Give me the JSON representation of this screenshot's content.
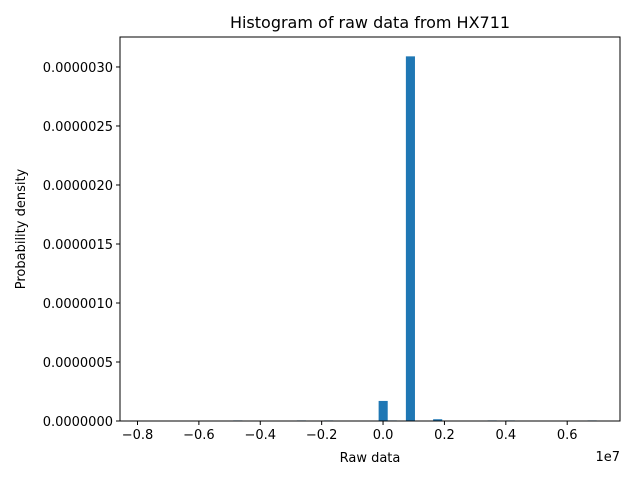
{
  "chart_data": {
    "type": "histogram",
    "title": "Histogram of raw data from HX711",
    "xlabel": "Raw data",
    "ylabel": "Probability density",
    "x_offset_label": "1e7",
    "color": "#1f77b4",
    "bins": [
      -0.784,
      -0.7544,
      -0.7248,
      -0.6952,
      -0.6656,
      -0.636,
      -0.6064,
      -0.5768,
      -0.5472,
      -0.5176,
      -0.488,
      -0.4584,
      -0.4288,
      -0.3992,
      -0.3696,
      -0.34,
      -0.3104,
      -0.2808,
      -0.2512,
      -0.2216,
      -0.192,
      -0.1624,
      -0.1328,
      -0.1032,
      -0.0736,
      -0.044,
      -0.0144,
      0.0152,
      0.0448,
      0.0744,
      0.104,
      0.1336,
      0.1632,
      0.1928,
      0.2224,
      0.252,
      0.2816,
      0.3112,
      0.3408,
      0.3704,
      0.4,
      0.4296,
      0.4592,
      0.4888,
      0.5184,
      0.548,
      0.5776,
      0.6072,
      0.6368,
      0.6664,
      0.696
    ],
    "values": [
      0,
      0,
      0,
      0,
      0,
      0,
      0,
      0,
      0,
      0,
      5e-09,
      0,
      0,
      0,
      0,
      0,
      0,
      5e-09,
      0,
      0,
      5e-09,
      0,
      0,
      0,
      0,
      0,
      1.7e-07,
      5e-09,
      0,
      3.09e-06,
      0,
      0,
      1.5e-08,
      0,
      0,
      0,
      0,
      0,
      5e-09,
      0,
      5e-09,
      0,
      0,
      0,
      0,
      0,
      0,
      0,
      0,
      5e-09
    ],
    "xlim": [
      -0.857,
      0.772
    ],
    "ylim": [
      0,
      3.254e-06
    ],
    "xticks": [
      {
        "value": -0.8,
        "label": "−0.8"
      },
      {
        "value": -0.6,
        "label": "−0.6"
      },
      {
        "value": -0.4,
        "label": "−0.4"
      },
      {
        "value": -0.2,
        "label": "−0.2"
      },
      {
        "value": 0,
        "label": "0.0"
      },
      0.2,
      0.4,
      0.6
    ],
    "yticks": [
      {
        "value": 0,
        "label": "0.0000000"
      },
      {
        "value": 5e-07,
        "label": "0.0000005"
      },
      {
        "value": 1e-06,
        "label": "0.0000010"
      },
      {
        "value": 1.5e-06,
        "label": "0.0000015"
      },
      {
        "value": 2e-06,
        "label": "0.0000020"
      },
      {
        "value": 2.5e-06,
        "label": "0.0000025"
      },
      {
        "value": 3e-06,
        "label": "0.0000030"
      }
    ],
    "grid": false
  }
}
